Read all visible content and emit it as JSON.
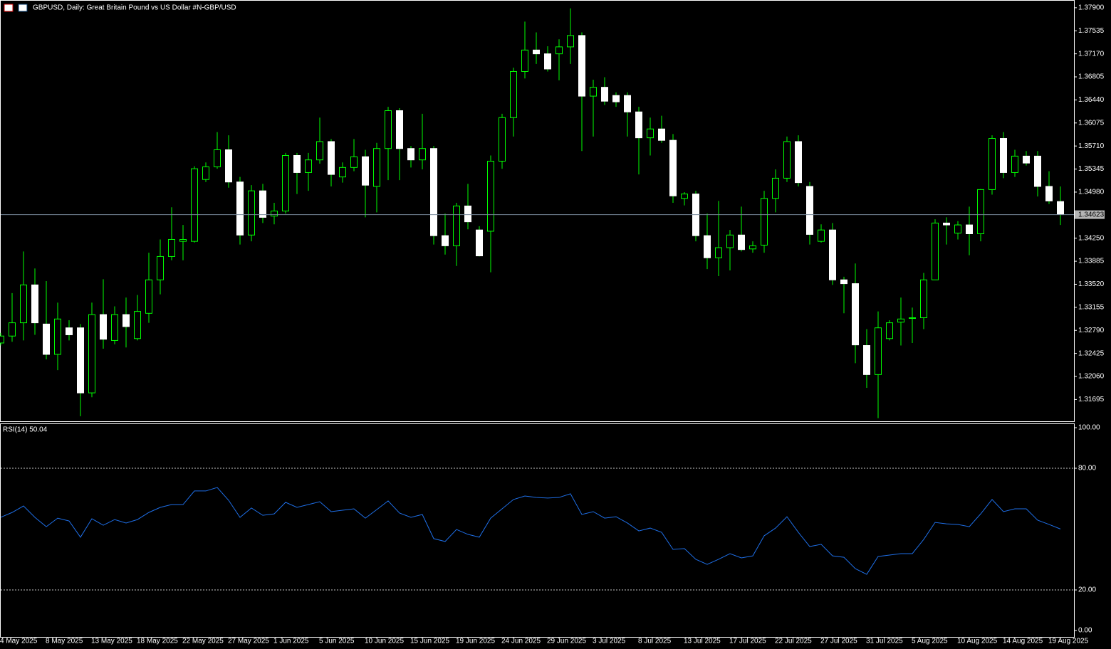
{
  "chart_data": [
    {
      "type": "candlestick",
      "title": "GBPUSD, Daily:  Great Britain Pound vs US Dollar #N-GBP/USD",
      "categories": [
        "4 May 2025",
        null,
        null,
        null,
        "8 May 2025",
        null,
        null,
        null,
        "13 May 2025",
        null,
        null,
        null,
        "18 May 2025",
        null,
        null,
        null,
        "22 May 2025",
        null,
        null,
        null,
        "27 May 2025",
        null,
        null,
        null,
        "1 Jun 2025",
        null,
        null,
        null,
        "5 Jun 2025",
        null,
        null,
        null,
        "10 Jun 2025",
        null,
        null,
        null,
        "15 Jun 2025",
        null,
        null,
        null,
        "19 Jun 2025",
        null,
        null,
        null,
        "24 Jun 2025",
        null,
        null,
        null,
        "29 Jun 2025",
        null,
        null,
        null,
        "3 Jul 2025",
        null,
        null,
        null,
        "8 Jul 2025",
        null,
        null,
        null,
        "13 Jul 2025",
        null,
        null,
        null,
        "17 Jul 2025",
        null,
        null,
        null,
        "22 Jul 2025",
        null,
        null,
        null,
        "27 Jul 2025",
        null,
        null,
        null,
        "31 Jul 2025",
        null,
        null,
        null,
        "5 Aug 2025",
        null,
        null,
        null,
        "10 Aug 2025",
        null,
        null,
        null,
        "14 Aug 2025",
        null,
        null,
        null,
        "19 Aug 2025",
        null
      ],
      "open": [
        1.3259,
        1.327,
        1.3291,
        1.3351,
        1.3289,
        1.3241,
        1.3283,
        1.3283,
        1.318,
        1.3304,
        1.3263,
        1.3304,
        1.3266,
        1.3306,
        1.3359,
        1.3396,
        1.342,
        1.342,
        1.3518,
        1.3538,
        1.3565,
        1.3514,
        1.343,
        1.35,
        1.346,
        1.3468,
        1.3556,
        1.3529,
        1.3549,
        1.3578,
        1.3522,
        1.3537,
        1.3554,
        1.3507,
        1.3567,
        1.3627,
        1.3567,
        1.3549,
        1.3567,
        1.3429,
        1.3413,
        1.3476,
        1.3438,
        1.3436,
        1.3547,
        1.3616,
        1.3689,
        1.3723,
        1.3717,
        1.3717,
        1.3728,
        1.3746,
        1.365,
        1.3664,
        1.3651,
        1.3651,
        1.3625,
        1.3584,
        1.3598,
        1.358,
        1.3488,
        1.3495,
        1.3429,
        1.3394,
        1.341,
        1.343,
        1.3408,
        1.3414,
        1.3488,
        1.352,
        1.3578,
        1.3507,
        1.342,
        1.3438,
        1.3359,
        1.3353,
        1.3255,
        1.3209,
        1.3266,
        1.3292,
        1.3298,
        1.3299,
        1.3359,
        1.3449,
        1.3433,
        1.3446,
        1.3432,
        1.3502,
        1.3583,
        1.3529,
        1.3555,
        1.3555,
        1.3507,
        1.3483
      ],
      "high": [
        1.3275,
        1.3338,
        1.3404,
        1.3377,
        1.3357,
        1.3323,
        1.3295,
        1.3289,
        1.3323,
        1.336,
        1.3317,
        1.3331,
        1.3335,
        1.3402,
        1.3423,
        1.3474,
        1.3446,
        1.3539,
        1.3545,
        1.3593,
        1.3588,
        1.3522,
        1.3509,
        1.3511,
        1.3481,
        1.356,
        1.356,
        1.356,
        1.3616,
        1.3582,
        1.3545,
        1.3582,
        1.3565,
        1.3576,
        1.3633,
        1.3631,
        1.3571,
        1.3622,
        1.3571,
        1.3464,
        1.3481,
        1.3511,
        1.3444,
        1.3556,
        1.3622,
        1.3695,
        1.3768,
        1.3751,
        1.3729,
        1.374,
        1.3789,
        1.3751,
        1.3676,
        1.368,
        1.3656,
        1.3656,
        1.3633,
        1.3616,
        1.3619,
        1.359,
        1.3498,
        1.35,
        1.3464,
        1.3484,
        1.3438,
        1.3475,
        1.342,
        1.35,
        1.3534,
        1.3586,
        1.3588,
        1.3514,
        1.3447,
        1.3449,
        1.3364,
        1.3385,
        1.3281,
        1.3309,
        1.3295,
        1.3331,
        1.3315,
        1.337,
        1.3455,
        1.3458,
        1.3452,
        1.3475,
        1.3503,
        1.3588,
        1.3593,
        1.3565,
        1.3563,
        1.3563,
        1.3531,
        1.3507
      ],
      "low": [
        1.3255,
        1.3261,
        1.3263,
        1.3272,
        1.3233,
        1.3216,
        1.3263,
        1.3143,
        1.3173,
        1.325,
        1.3257,
        1.3252,
        1.3263,
        1.3291,
        1.3336,
        1.339,
        1.339,
        1.3418,
        1.3514,
        1.3535,
        1.3505,
        1.3415,
        1.342,
        1.3449,
        1.3447,
        1.3464,
        1.3495,
        1.35,
        1.3543,
        1.3507,
        1.3513,
        1.3531,
        1.3458,
        1.3466,
        1.3517,
        1.3517,
        1.3537,
        1.3534,
        1.3415,
        1.3399,
        1.3381,
        1.3439,
        1.3396,
        1.3371,
        1.3535,
        1.3586,
        1.3678,
        1.3701,
        1.3689,
        1.3675,
        1.3701,
        1.3563,
        1.3586,
        1.3636,
        1.3633,
        1.3586,
        1.3526,
        1.3556,
        1.3576,
        1.3481,
        1.3477,
        1.342,
        1.3376,
        1.3365,
        1.3374,
        1.3404,
        1.3402,
        1.3402,
        1.3466,
        1.3514,
        1.3507,
        1.3415,
        1.3418,
        1.3351,
        1.3306,
        1.3227,
        1.3188,
        1.314,
        1.3263,
        1.3255,
        1.3259,
        1.3281,
        1.3359,
        1.3415,
        1.3423,
        1.3398,
        1.342,
        1.3494,
        1.352,
        1.3522,
        1.354,
        1.3491,
        1.3479,
        1.3446
      ],
      "close": [
        1.327,
        1.3291,
        1.3351,
        1.3291,
        1.3241,
        1.3297,
        1.3272,
        1.318,
        1.3304,
        1.3265,
        1.3304,
        1.3285,
        1.3309,
        1.3359,
        1.3396,
        1.3423,
        1.3423,
        1.3535,
        1.3538,
        1.3565,
        1.3514,
        1.343,
        1.35,
        1.3458,
        1.3468,
        1.3556,
        1.3529,
        1.3549,
        1.3578,
        1.3526,
        1.3537,
        1.3554,
        1.3509,
        1.3567,
        1.3627,
        1.3567,
        1.3549,
        1.3567,
        1.3429,
        1.3413,
        1.3476,
        1.3451,
        1.3397,
        1.3547,
        1.3616,
        1.3689,
        1.3723,
        1.3717,
        1.3693,
        1.3728,
        1.3746,
        1.365,
        1.3664,
        1.3642,
        1.3641,
        1.3625,
        1.3584,
        1.3598,
        1.358,
        1.3492,
        1.3495,
        1.3429,
        1.3394,
        1.341,
        1.343,
        1.3407,
        1.3413,
        1.3488,
        1.352,
        1.3578,
        1.3513,
        1.3431,
        1.3438,
        1.3359,
        1.3353,
        1.3256,
        1.3209,
        1.3283,
        1.3291,
        1.3297,
        1.3299,
        1.3359,
        1.3449,
        1.3446,
        1.3446,
        1.3432,
        1.3502,
        1.3583,
        1.3529,
        1.3555,
        1.3544,
        1.3507,
        1.3484,
        1.3463
      ],
      "up_color": "#000000",
      "down_color": "#ffffff",
      "wick_color": "#00ff00",
      "current_price": 1.34623,
      "ylim": [
        1.3135,
        1.38
      ],
      "yticks": [
        {
          "value": 1.379,
          "label": "1.37900"
        },
        1.37535,
        {
          "value": 1.3717,
          "label": "1.37170"
        },
        1.36805,
        {
          "value": 1.3644,
          "label": "1.36440"
        },
        1.36075,
        {
          "value": 1.3571,
          "label": "1.35710"
        },
        1.35345,
        {
          "value": 1.3498,
          "label": "1.34980"
        },
        {
          "value": 1.3425,
          "label": "1.34250"
        },
        1.33885,
        {
          "value": 1.3352,
          "label": "1.33520"
        },
        1.33155,
        {
          "value": 1.3279,
          "label": "1.32790"
        },
        1.32425,
        {
          "value": 1.3206,
          "label": "1.32060"
        },
        1.31695
      ]
    },
    {
      "type": "line",
      "title": "RSI(14) 50.04",
      "color": "#1e6ee6",
      "values": [
        55.8,
        58.2,
        61.4,
        55.8,
        51.2,
        55.4,
        54.0,
        46.0,
        55.1,
        51.9,
        54.7,
        53.0,
        54.7,
        58.2,
        60.7,
        62.1,
        62.1,
        68.8,
        68.8,
        70.5,
        64.2,
        55.8,
        60.4,
        56.8,
        57.5,
        63.2,
        60.7,
        62.1,
        63.5,
        58.6,
        59.3,
        60.0,
        55.4,
        59.6,
        63.9,
        57.9,
        55.8,
        57.2,
        45.3,
        43.9,
        49.8,
        47.4,
        46.0,
        55.4,
        60.0,
        64.6,
        66.3,
        65.6,
        65.3,
        65.6,
        67.4,
        57.2,
        58.6,
        55.4,
        56.1,
        53.0,
        49.1,
        50.5,
        48.4,
        40.0,
        40.4,
        35.1,
        32.6,
        35.1,
        37.9,
        35.8,
        36.8,
        46.7,
        50.5,
        56.1,
        48.4,
        41.4,
        42.5,
        36.8,
        36.1,
        30.5,
        27.7,
        36.5,
        37.2,
        37.9,
        37.9,
        44.9,
        53.3,
        52.6,
        52.3,
        51.2,
        57.5,
        64.6,
        58.6,
        60.0,
        60.0,
        54.4,
        52.3,
        50.04
      ],
      "ylim": [
        -3.5,
        101.75
      ],
      "yticks": [
        {
          "value": 100,
          "label": "100.00"
        },
        {
          "value": 80,
          "label": "80.00"
        },
        {
          "value": 20,
          "label": "20.00"
        },
        {
          "value": 0,
          "label": "0.00"
        }
      ],
      "levels": [
        20,
        80
      ]
    }
  ]
}
